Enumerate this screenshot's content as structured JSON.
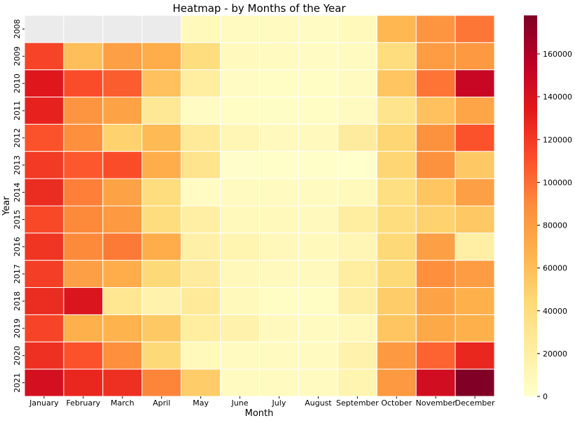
{
  "chart_data": {
    "type": "heatmap",
    "title": "Heatmap - by Months of the Year",
    "xlabel": "Month",
    "ylabel": "Year",
    "x_categories": [
      "January",
      "February",
      "March",
      "April",
      "May",
      "June",
      "July",
      "August",
      "September",
      "October",
      "November",
      "December"
    ],
    "y_categories": [
      "2008",
      "2009",
      "2010",
      "2011",
      "2012",
      "2013",
      "2014",
      "2015",
      "2016",
      "2017",
      "2018",
      "2019",
      "2020",
      "2021"
    ],
    "values": [
      [
        null,
        null,
        null,
        null,
        8000,
        6000,
        6000,
        5000,
        8000,
        64000,
        84000,
        97000
      ],
      [
        116000,
        60000,
        78000,
        70000,
        40000,
        7000,
        6000,
        5000,
        6000,
        40000,
        80000,
        82000
      ],
      [
        136000,
        112000,
        106000,
        58000,
        22000,
        5000,
        4000,
        4000,
        6000,
        56000,
        98000,
        150000
      ],
      [
        130000,
        84000,
        76000,
        28000,
        5000,
        4000,
        3000,
        4000,
        6000,
        32000,
        58000,
        74000
      ],
      [
        110000,
        88000,
        48000,
        62000,
        26000,
        11000,
        7000,
        7000,
        24000,
        46000,
        86000,
        110000
      ],
      [
        120000,
        108000,
        112000,
        70000,
        32000,
        1000,
        2000,
        2000,
        0,
        46000,
        86000,
        54000
      ],
      [
        126000,
        94000,
        76000,
        40000,
        5000,
        6000,
        6000,
        6000,
        8000,
        38000,
        56000,
        78000
      ],
      [
        114000,
        90000,
        82000,
        40000,
        20000,
        8000,
        8000,
        7000,
        22000,
        40000,
        48000,
        54000
      ],
      [
        122000,
        90000,
        96000,
        70000,
        18000,
        14000,
        9000,
        8000,
        12000,
        44000,
        78000,
        20000
      ],
      [
        118000,
        78000,
        70000,
        44000,
        24000,
        9000,
        7000,
        7000,
        22000,
        44000,
        88000,
        80000
      ],
      [
        126000,
        138000,
        30000,
        16000,
        26000,
        8000,
        4000,
        4000,
        20000,
        52000,
        76000,
        68000
      ],
      [
        116000,
        68000,
        66000,
        54000,
        22000,
        16000,
        7000,
        6000,
        9000,
        56000,
        72000,
        68000
      ],
      [
        124000,
        110000,
        88000,
        44000,
        8000,
        6000,
        6000,
        6000,
        16000,
        82000,
        104000,
        128000
      ],
      [
        142000,
        128000,
        124000,
        92000,
        52000,
        6000,
        6000,
        6000,
        14000,
        82000,
        144000,
        178000
      ]
    ],
    "missing_color": "#ebebeb",
    "colormap": "YlOrRd",
    "colormap_stops": [
      "#ffffcc",
      "#ffeda0",
      "#fed976",
      "#feb24c",
      "#fd8d3c",
      "#fc4e2a",
      "#e31a1c",
      "#bd0026",
      "#800026"
    ],
    "value_range": [
      0,
      178000
    ],
    "colorbar": {
      "ticks": [
        "0",
        "20000",
        "40000",
        "60000",
        "80000",
        "100000",
        "120000",
        "140000",
        "160000"
      ]
    },
    "grid": false,
    "cell_border_color": "#ffffff"
  }
}
